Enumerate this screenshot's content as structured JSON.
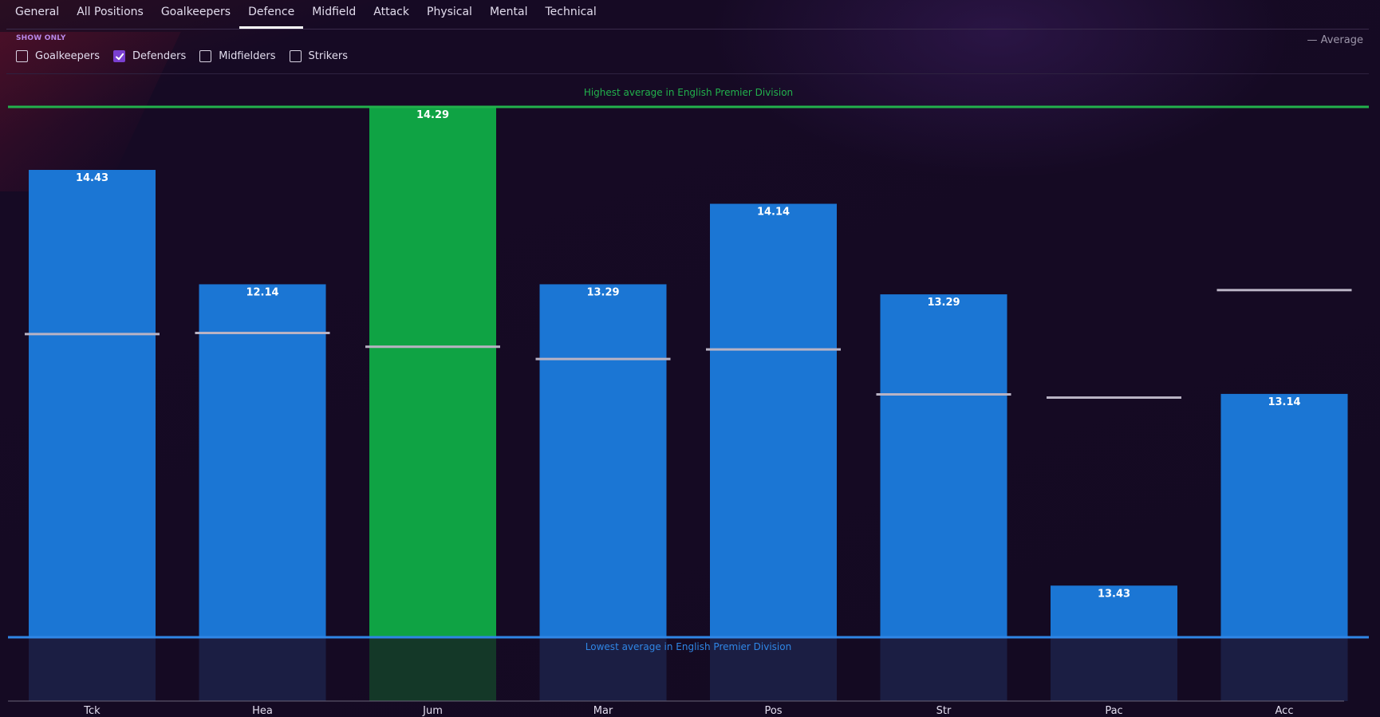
{
  "tabs": [
    {
      "label": "General",
      "active": false
    },
    {
      "label": "All Positions",
      "active": false
    },
    {
      "label": "Goalkeepers",
      "active": false
    },
    {
      "label": "Defence",
      "active": true
    },
    {
      "label": "Midfield",
      "active": false
    },
    {
      "label": "Attack",
      "active": false
    },
    {
      "label": "Physical",
      "active": false
    },
    {
      "label": "Mental",
      "active": false
    },
    {
      "label": "Technical",
      "active": false
    }
  ],
  "filters": {
    "heading": "SHOW ONLY",
    "options": [
      {
        "label": "Goalkeepers",
        "checked": false
      },
      {
        "label": "Defenders",
        "checked": true
      },
      {
        "label": "Midfielders",
        "checked": false
      },
      {
        "label": "Strikers",
        "checked": false
      }
    ]
  },
  "legend": {
    "average_label": "— Average"
  },
  "colors": {
    "bar_default": "#1b76d4",
    "bar_highlight": "#0fa344",
    "highest_line": "#22b14c",
    "lowest_line": "#2f86e6",
    "average_marker": "#b9b3c4"
  },
  "chart_data": {
    "type": "bar",
    "categories": [
      "Tck",
      "Hea",
      "Jum",
      "Mar",
      "Pos",
      "Str",
      "Pac",
      "Acc"
    ],
    "values": [
      14.43,
      12.14,
      14.29,
      13.29,
      14.14,
      13.29,
      13.43,
      13.14
    ],
    "value_labels": [
      "14.43",
      "12.14",
      "14.29",
      "13.29",
      "14.14",
      "13.29",
      "13.43",
      "13.14"
    ],
    "bar_fraction_of_range": [
      0.881,
      0.665,
      1.0,
      0.665,
      0.817,
      0.646,
      0.096,
      0.458
    ],
    "average_fraction_of_range": [
      0.571,
      0.573,
      0.547,
      0.524,
      0.542,
      0.457,
      0.451,
      0.654
    ],
    "highlighted_index": 2,
    "highest_label": "Highest average in English Premier Division",
    "lowest_label": "Lowest average in English Premier Division",
    "legend_position": "top-right",
    "grid": false
  }
}
